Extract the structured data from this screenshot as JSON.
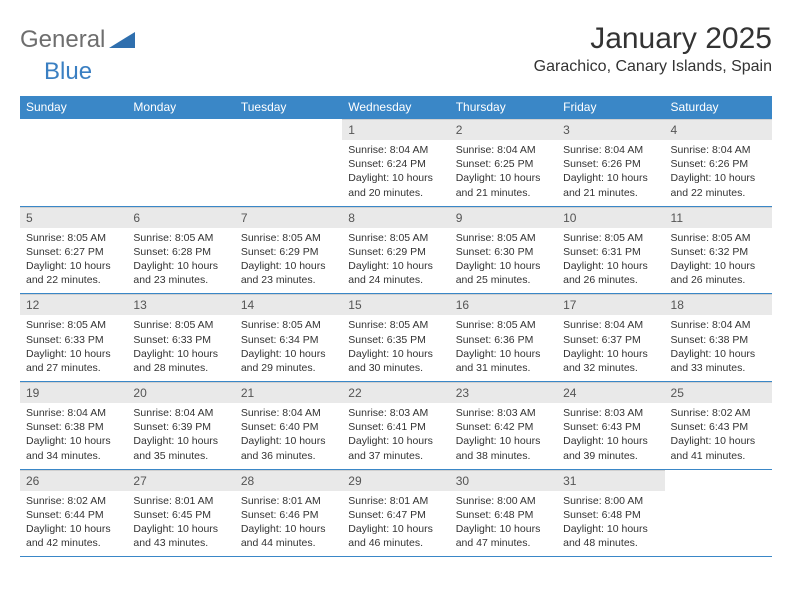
{
  "brand": {
    "a": "General",
    "b": "Blue",
    "triangle_color": "#2f6fae"
  },
  "title": {
    "month": "January 2025",
    "location": "Garachico, Canary Islands, Spain"
  },
  "colors": {
    "header_bg": "#3a87c7",
    "header_fg": "#ffffff",
    "daynum_bg": "#e9e9e9",
    "rule": "#3a87c7"
  },
  "dow": [
    "Sunday",
    "Monday",
    "Tuesday",
    "Wednesday",
    "Thursday",
    "Friday",
    "Saturday"
  ],
  "weeks": [
    [
      {
        "num": "",
        "lines": [
          "",
          "",
          "",
          ""
        ]
      },
      {
        "num": "",
        "lines": [
          "",
          "",
          "",
          ""
        ]
      },
      {
        "num": "",
        "lines": [
          "",
          "",
          "",
          ""
        ]
      },
      {
        "num": "1",
        "lines": [
          "Sunrise: 8:04 AM",
          "Sunset: 6:24 PM",
          "Daylight: 10 hours",
          "and 20 minutes."
        ]
      },
      {
        "num": "2",
        "lines": [
          "Sunrise: 8:04 AM",
          "Sunset: 6:25 PM",
          "Daylight: 10 hours",
          "and 21 minutes."
        ]
      },
      {
        "num": "3",
        "lines": [
          "Sunrise: 8:04 AM",
          "Sunset: 6:26 PM",
          "Daylight: 10 hours",
          "and 21 minutes."
        ]
      },
      {
        "num": "4",
        "lines": [
          "Sunrise: 8:04 AM",
          "Sunset: 6:26 PM",
          "Daylight: 10 hours",
          "and 22 minutes."
        ]
      }
    ],
    [
      {
        "num": "5",
        "lines": [
          "Sunrise: 8:05 AM",
          "Sunset: 6:27 PM",
          "Daylight: 10 hours",
          "and 22 minutes."
        ]
      },
      {
        "num": "6",
        "lines": [
          "Sunrise: 8:05 AM",
          "Sunset: 6:28 PM",
          "Daylight: 10 hours",
          "and 23 minutes."
        ]
      },
      {
        "num": "7",
        "lines": [
          "Sunrise: 8:05 AM",
          "Sunset: 6:29 PM",
          "Daylight: 10 hours",
          "and 23 minutes."
        ]
      },
      {
        "num": "8",
        "lines": [
          "Sunrise: 8:05 AM",
          "Sunset: 6:29 PM",
          "Daylight: 10 hours",
          "and 24 minutes."
        ]
      },
      {
        "num": "9",
        "lines": [
          "Sunrise: 8:05 AM",
          "Sunset: 6:30 PM",
          "Daylight: 10 hours",
          "and 25 minutes."
        ]
      },
      {
        "num": "10",
        "lines": [
          "Sunrise: 8:05 AM",
          "Sunset: 6:31 PM",
          "Daylight: 10 hours",
          "and 26 minutes."
        ]
      },
      {
        "num": "11",
        "lines": [
          "Sunrise: 8:05 AM",
          "Sunset: 6:32 PM",
          "Daylight: 10 hours",
          "and 26 minutes."
        ]
      }
    ],
    [
      {
        "num": "12",
        "lines": [
          "Sunrise: 8:05 AM",
          "Sunset: 6:33 PM",
          "Daylight: 10 hours",
          "and 27 minutes."
        ]
      },
      {
        "num": "13",
        "lines": [
          "Sunrise: 8:05 AM",
          "Sunset: 6:33 PM",
          "Daylight: 10 hours",
          "and 28 minutes."
        ]
      },
      {
        "num": "14",
        "lines": [
          "Sunrise: 8:05 AM",
          "Sunset: 6:34 PM",
          "Daylight: 10 hours",
          "and 29 minutes."
        ]
      },
      {
        "num": "15",
        "lines": [
          "Sunrise: 8:05 AM",
          "Sunset: 6:35 PM",
          "Daylight: 10 hours",
          "and 30 minutes."
        ]
      },
      {
        "num": "16",
        "lines": [
          "Sunrise: 8:05 AM",
          "Sunset: 6:36 PM",
          "Daylight: 10 hours",
          "and 31 minutes."
        ]
      },
      {
        "num": "17",
        "lines": [
          "Sunrise: 8:04 AM",
          "Sunset: 6:37 PM",
          "Daylight: 10 hours",
          "and 32 minutes."
        ]
      },
      {
        "num": "18",
        "lines": [
          "Sunrise: 8:04 AM",
          "Sunset: 6:38 PM",
          "Daylight: 10 hours",
          "and 33 minutes."
        ]
      }
    ],
    [
      {
        "num": "19",
        "lines": [
          "Sunrise: 8:04 AM",
          "Sunset: 6:38 PM",
          "Daylight: 10 hours",
          "and 34 minutes."
        ]
      },
      {
        "num": "20",
        "lines": [
          "Sunrise: 8:04 AM",
          "Sunset: 6:39 PM",
          "Daylight: 10 hours",
          "and 35 minutes."
        ]
      },
      {
        "num": "21",
        "lines": [
          "Sunrise: 8:04 AM",
          "Sunset: 6:40 PM",
          "Daylight: 10 hours",
          "and 36 minutes."
        ]
      },
      {
        "num": "22",
        "lines": [
          "Sunrise: 8:03 AM",
          "Sunset: 6:41 PM",
          "Daylight: 10 hours",
          "and 37 minutes."
        ]
      },
      {
        "num": "23",
        "lines": [
          "Sunrise: 8:03 AM",
          "Sunset: 6:42 PM",
          "Daylight: 10 hours",
          "and 38 minutes."
        ]
      },
      {
        "num": "24",
        "lines": [
          "Sunrise: 8:03 AM",
          "Sunset: 6:43 PM",
          "Daylight: 10 hours",
          "and 39 minutes."
        ]
      },
      {
        "num": "25",
        "lines": [
          "Sunrise: 8:02 AM",
          "Sunset: 6:43 PM",
          "Daylight: 10 hours",
          "and 41 minutes."
        ]
      }
    ],
    [
      {
        "num": "26",
        "lines": [
          "Sunrise: 8:02 AM",
          "Sunset: 6:44 PM",
          "Daylight: 10 hours",
          "and 42 minutes."
        ]
      },
      {
        "num": "27",
        "lines": [
          "Sunrise: 8:01 AM",
          "Sunset: 6:45 PM",
          "Daylight: 10 hours",
          "and 43 minutes."
        ]
      },
      {
        "num": "28",
        "lines": [
          "Sunrise: 8:01 AM",
          "Sunset: 6:46 PM",
          "Daylight: 10 hours",
          "and 44 minutes."
        ]
      },
      {
        "num": "29",
        "lines": [
          "Sunrise: 8:01 AM",
          "Sunset: 6:47 PM",
          "Daylight: 10 hours",
          "and 46 minutes."
        ]
      },
      {
        "num": "30",
        "lines": [
          "Sunrise: 8:00 AM",
          "Sunset: 6:48 PM",
          "Daylight: 10 hours",
          "and 47 minutes."
        ]
      },
      {
        "num": "31",
        "lines": [
          "Sunrise: 8:00 AM",
          "Sunset: 6:48 PM",
          "Daylight: 10 hours",
          "and 48 minutes."
        ]
      },
      {
        "num": "",
        "lines": [
          "",
          "",
          "",
          ""
        ]
      }
    ]
  ]
}
